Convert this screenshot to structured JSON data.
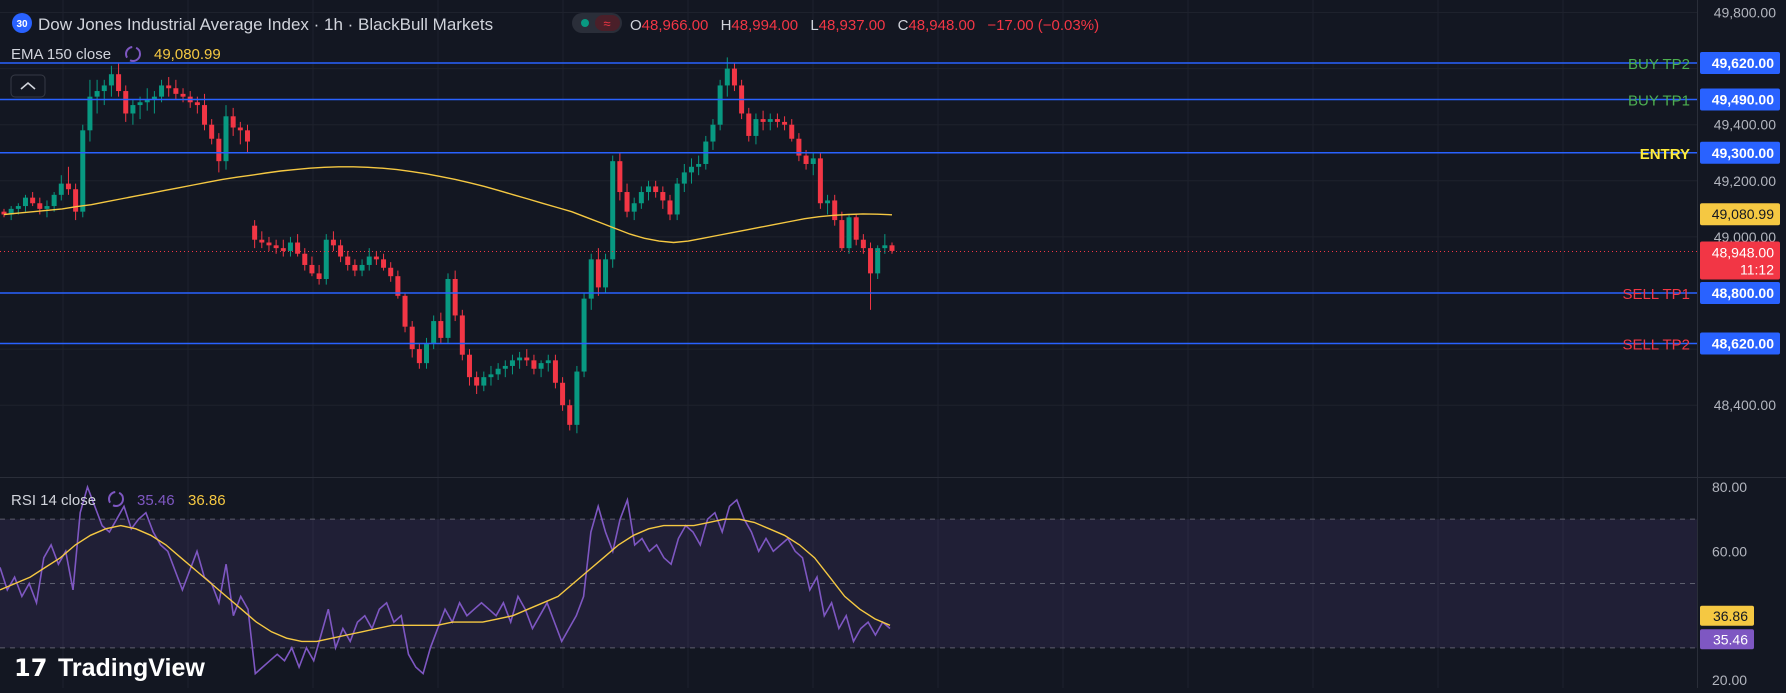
{
  "header": {
    "symbol_badge": "30",
    "title": "Dow Jones Industrial Average Index · 1h · BlackBull Markets",
    "ohlc": {
      "o_label": "O",
      "o_value": "48,966.00",
      "h_label": "H",
      "h_value": "48,994.00",
      "l_label": "L",
      "l_value": "48,937.00",
      "c_label": "C",
      "c_value": "48,948.00",
      "change": "−17.00 (−0.03%)"
    },
    "collapse_icon": "chevron-up-icon"
  },
  "ema_legend": {
    "label": "EMA 150 close",
    "value": "49,080.99",
    "icon": "cycle-icon"
  },
  "rsi_legend": {
    "label": "RSI 14 close",
    "value": "35.46",
    "ma_value": "36.86",
    "icon": "cycle-icon"
  },
  "levels": [
    {
      "name": "BUY TP2",
      "price": 49620,
      "price_label": "49,620.00",
      "label_color": "#4caf50"
    },
    {
      "name": "BUY TP1",
      "price": 49490,
      "price_label": "49,490.00",
      "label_color": "#4caf50"
    },
    {
      "name": "ENTRY",
      "price": 49300,
      "price_label": "49,300.00",
      "label_color": "#ffeb3b"
    },
    {
      "name": "SELL TP1",
      "price": 48800,
      "price_label": "48,800.00",
      "label_color": "#f23645"
    },
    {
      "name": "SELL TP2",
      "price": 48620,
      "price_label": "48,620.00",
      "label_color": "#f23645"
    }
  ],
  "price_axis": {
    "ticks": [
      "49,800.00",
      "49,400.00",
      "49,200.00",
      "49,000.00",
      "48,400.00"
    ],
    "ema_tag": "49,080.99",
    "last_price_tag": "48,948.00",
    "countdown": "11:12"
  },
  "rsi_axis": {
    "ticks": [
      "80.00",
      "60.00",
      "20.00"
    ],
    "ma_tag": "36.86",
    "rsi_tag": "35.46"
  },
  "logo": {
    "text": "TradingView"
  },
  "colors": {
    "background": "#131722",
    "up": "#089981",
    "down": "#f23645",
    "level_line": "#2962ff",
    "ema": "#f5c842",
    "rsi": "#7e57c2",
    "rsi_ma": "#f5c842"
  },
  "chart_data": [
    {
      "type": "candlestick",
      "title": "Dow Jones Industrial Average Index · 1h · BlackBull Markets",
      "price_range": [
        48260,
        49850
      ],
      "last_price": 48948,
      "candles": [
        [
          49090,
          49100,
          49070,
          49080
        ],
        [
          49080,
          49110,
          49060,
          49100
        ],
        [
          49100,
          49120,
          49080,
          49110
        ],
        [
          49110,
          49150,
          49090,
          49140
        ],
        [
          49140,
          49160,
          49110,
          49120
        ],
        [
          49120,
          49140,
          49080,
          49100
        ],
        [
          49100,
          49130,
          49070,
          49110
        ],
        [
          49110,
          49160,
          49090,
          49150
        ],
        [
          49150,
          49220,
          49130,
          49190
        ],
        [
          49190,
          49250,
          49150,
          49170
        ],
        [
          49170,
          49190,
          49060,
          49090
        ],
        [
          49090,
          49400,
          49070,
          49380
        ],
        [
          49380,
          49560,
          49340,
          49500
        ],
        [
          49500,
          49560,
          49440,
          49520
        ],
        [
          49520,
          49560,
          49470,
          49540
        ],
        [
          49540,
          49610,
          49500,
          49580
        ],
        [
          49580,
          49620,
          49500,
          49520
        ],
        [
          49520,
          49540,
          49410,
          49440
        ],
        [
          49440,
          49490,
          49400,
          49470
        ],
        [
          49470,
          49500,
          49420,
          49480
        ],
        [
          49480,
          49530,
          49450,
          49490
        ],
        [
          49490,
          49520,
          49440,
          49500
        ],
        [
          49500,
          49560,
          49480,
          49540
        ],
        [
          49540,
          49570,
          49500,
          49530
        ],
        [
          49530,
          49560,
          49490,
          49510
        ],
        [
          49510,
          49530,
          49480,
          49500
        ],
        [
          49500,
          49520,
          49460,
          49480
        ],
        [
          49480,
          49500,
          49440,
          49470
        ],
        [
          49470,
          49510,
          49380,
          49400
        ],
        [
          49400,
          49420,
          49330,
          49350
        ],
        [
          49350,
          49370,
          49230,
          49270
        ],
        [
          49270,
          49470,
          49240,
          49430
        ],
        [
          49430,
          49460,
          49360,
          49390
        ],
        [
          49390,
          49410,
          49330,
          49380
        ],
        [
          49380,
          49400,
          49300,
          49340
        ],
        [
          49040,
          49060,
          48960,
          48990
        ],
        [
          48990,
          49020,
          48960,
          48980
        ],
        [
          48980,
          49000,
          48950,
          48970
        ],
        [
          48970,
          48990,
          48940,
          48960
        ],
        [
          48960,
          48990,
          48930,
          48950
        ],
        [
          48950,
          49000,
          48930,
          48980
        ],
        [
          48980,
          49010,
          48930,
          48940
        ],
        [
          48940,
          48960,
          48880,
          48900
        ],
        [
          48900,
          48930,
          48860,
          48870
        ],
        [
          48870,
          48900,
          48830,
          48850
        ],
        [
          48850,
          49010,
          48830,
          48990
        ],
        [
          48990,
          49020,
          48950,
          48970
        ],
        [
          48970,
          48990,
          48910,
          48930
        ],
        [
          48930,
          48950,
          48880,
          48900
        ],
        [
          48900,
          48920,
          48860,
          48880
        ],
        [
          48880,
          48920,
          48860,
          48900
        ],
        [
          48900,
          48960,
          48880,
          48930
        ],
        [
          48930,
          48950,
          48900,
          48920
        ],
        [
          48920,
          48940,
          48880,
          48890
        ],
        [
          48890,
          48910,
          48840,
          48860
        ],
        [
          48860,
          48880,
          48780,
          48790
        ],
        [
          48790,
          48800,
          48660,
          48680
        ],
        [
          48680,
          48700,
          48570,
          48600
        ],
        [
          48600,
          48620,
          48530,
          48550
        ],
        [
          48550,
          48640,
          48530,
          48620
        ],
        [
          48620,
          48720,
          48600,
          48700
        ],
        [
          48700,
          48730,
          48620,
          48640
        ],
        [
          48640,
          48870,
          48620,
          48850
        ],
        [
          48850,
          48880,
          48700,
          48720
        ],
        [
          48720,
          48740,
          48560,
          48580
        ],
        [
          48580,
          48600,
          48470,
          48500
        ],
        [
          48500,
          48520,
          48440,
          48470
        ],
        [
          48470,
          48520,
          48450,
          48500
        ],
        [
          48500,
          48540,
          48470,
          48510
        ],
        [
          48510,
          48550,
          48490,
          48530
        ],
        [
          48530,
          48560,
          48500,
          48540
        ],
        [
          48540,
          48580,
          48510,
          48560
        ],
        [
          48560,
          48590,
          48530,
          48570
        ],
        [
          48570,
          48600,
          48540,
          48560
        ],
        [
          48560,
          48580,
          48510,
          48530
        ],
        [
          48530,
          48560,
          48500,
          48550
        ],
        [
          48550,
          48580,
          48520,
          48560
        ],
        [
          48560,
          48580,
          48460,
          48480
        ],
        [
          48480,
          48500,
          48380,
          48400
        ],
        [
          48400,
          48420,
          48310,
          48330
        ],
        [
          48330,
          48540,
          48300,
          48520
        ],
        [
          48520,
          48800,
          48500,
          48780
        ],
        [
          48780,
          48940,
          48740,
          48920
        ],
        [
          48920,
          48960,
          48790,
          48820
        ],
        [
          48820,
          48940,
          48800,
          48920
        ],
        [
          48920,
          49290,
          48890,
          49270
        ],
        [
          49270,
          49300,
          49130,
          49160
        ],
        [
          49160,
          49190,
          49070,
          49090
        ],
        [
          49090,
          49140,
          49060,
          49120
        ],
        [
          49120,
          49180,
          49100,
          49160
        ],
        [
          49160,
          49200,
          49130,
          49180
        ],
        [
          49180,
          49200,
          49140,
          49160
        ],
        [
          49160,
          49180,
          49100,
          49130
        ],
        [
          49130,
          49150,
          49060,
          49080
        ],
        [
          49080,
          49210,
          49060,
          49190
        ],
        [
          49190,
          49260,
          49160,
          49230
        ],
        [
          49230,
          49280,
          49190,
          49250
        ],
        [
          49250,
          49290,
          49220,
          49260
        ],
        [
          49260,
          49360,
          49240,
          49340
        ],
        [
          49340,
          49420,
          49310,
          49400
        ],
        [
          49400,
          49560,
          49380,
          49540
        ],
        [
          49540,
          49640,
          49500,
          49600
        ],
        [
          49600,
          49620,
          49520,
          49540
        ],
        [
          49540,
          49560,
          49420,
          49440
        ],
        [
          49440,
          49460,
          49340,
          49360
        ],
        [
          49360,
          49440,
          49330,
          49420
        ],
        [
          49420,
          49450,
          49380,
          49410
        ],
        [
          49410,
          49440,
          49380,
          49420
        ],
        [
          49420,
          49440,
          49390,
          49410
        ],
        [
          49410,
          49430,
          49380,
          49400
        ],
        [
          49400,
          49420,
          49340,
          49350
        ],
        [
          49350,
          49370,
          49270,
          49290
        ],
        [
          49290,
          49310,
          49240,
          49260
        ],
        [
          49260,
          49300,
          49220,
          49280
        ],
        [
          49280,
          49300,
          49100,
          49120
        ],
        [
          49120,
          49150,
          49080,
          49130
        ],
        [
          49130,
          49150,
          49040,
          49060
        ],
        [
          49060,
          49090,
          48950,
          48960
        ],
        [
          48960,
          49080,
          48940,
          49070
        ],
        [
          49070,
          49080,
          48970,
          48990
        ],
        [
          48990,
          49010,
          48940,
          48960
        ],
        [
          48960,
          48980,
          48740,
          48870
        ],
        [
          48870,
          48970,
          48850,
          48960
        ],
        [
          48960,
          49010,
          48940,
          48970
        ],
        [
          48970,
          48980,
          48940,
          48950
        ]
      ],
      "ema150": [
        49080,
        49085,
        49090,
        49095,
        49100,
        49108,
        49115,
        49125,
        49135,
        49145,
        49155,
        49165,
        49175,
        49185,
        49195,
        49205,
        49213,
        49220,
        49228,
        49235,
        49240,
        49245,
        49248,
        49250,
        49250,
        49248,
        49245,
        49240,
        49233,
        49225,
        49215,
        49205,
        49193,
        49180,
        49165,
        49150,
        49135,
        49120,
        49105,
        49090,
        49070,
        49050,
        49030,
        49010,
        48995,
        48985,
        48980,
        48985,
        48995,
        49005,
        49015,
        49025,
        49035,
        49045,
        49055,
        49065,
        49072,
        49077,
        49080,
        49082,
        49081,
        49079
      ]
    },
    {
      "type": "line",
      "title": "RSI 14 close",
      "y_range": [
        20,
        80
      ],
      "bands": [
        30,
        50,
        70
      ],
      "series": [
        {
          "name": "RSI",
          "values": [
            55,
            48,
            52,
            46,
            50,
            44,
            58,
            62,
            56,
            60,
            48,
            72,
            80,
            74,
            68,
            66,
            70,
            74,
            67,
            70,
            72,
            66,
            62,
            60,
            54,
            48,
            54,
            60,
            52,
            50,
            44,
            56,
            40,
            46,
            42,
            22,
            24,
            26,
            28,
            26,
            30,
            24,
            30,
            26,
            34,
            42,
            30,
            36,
            32,
            38,
            40,
            36,
            42,
            44,
            38,
            40,
            28,
            24,
            22,
            30,
            36,
            42,
            38,
            44,
            40,
            42,
            44,
            42,
            40,
            44,
            38,
            46,
            42,
            36,
            40,
            44,
            38,
            32,
            36,
            40,
            46,
            66,
            74,
            66,
            60,
            70,
            76,
            62,
            64,
            60,
            62,
            58,
            56,
            64,
            68,
            66,
            62,
            70,
            72,
            66,
            74,
            76,
            70,
            66,
            60,
            64,
            60,
            62,
            64,
            60,
            58,
            48,
            52,
            40,
            44,
            36,
            40,
            32,
            36,
            38,
            34,
            38,
            36
          ]
        },
        {
          "name": "RSI-based MA",
          "values": [
            48,
            50,
            52,
            55,
            58,
            62,
            65,
            67,
            68,
            67,
            65,
            62,
            58,
            54,
            50,
            46,
            42,
            38,
            35,
            33,
            32,
            32,
            33,
            34,
            35,
            36,
            37,
            37,
            37,
            37,
            38,
            38,
            38,
            39,
            40,
            42,
            44,
            46,
            50,
            54,
            58,
            62,
            65,
            67,
            68,
            68,
            68,
            69,
            70,
            70,
            69,
            67,
            65,
            62,
            58,
            52,
            46,
            42,
            39,
            37
          ]
        }
      ]
    }
  ]
}
